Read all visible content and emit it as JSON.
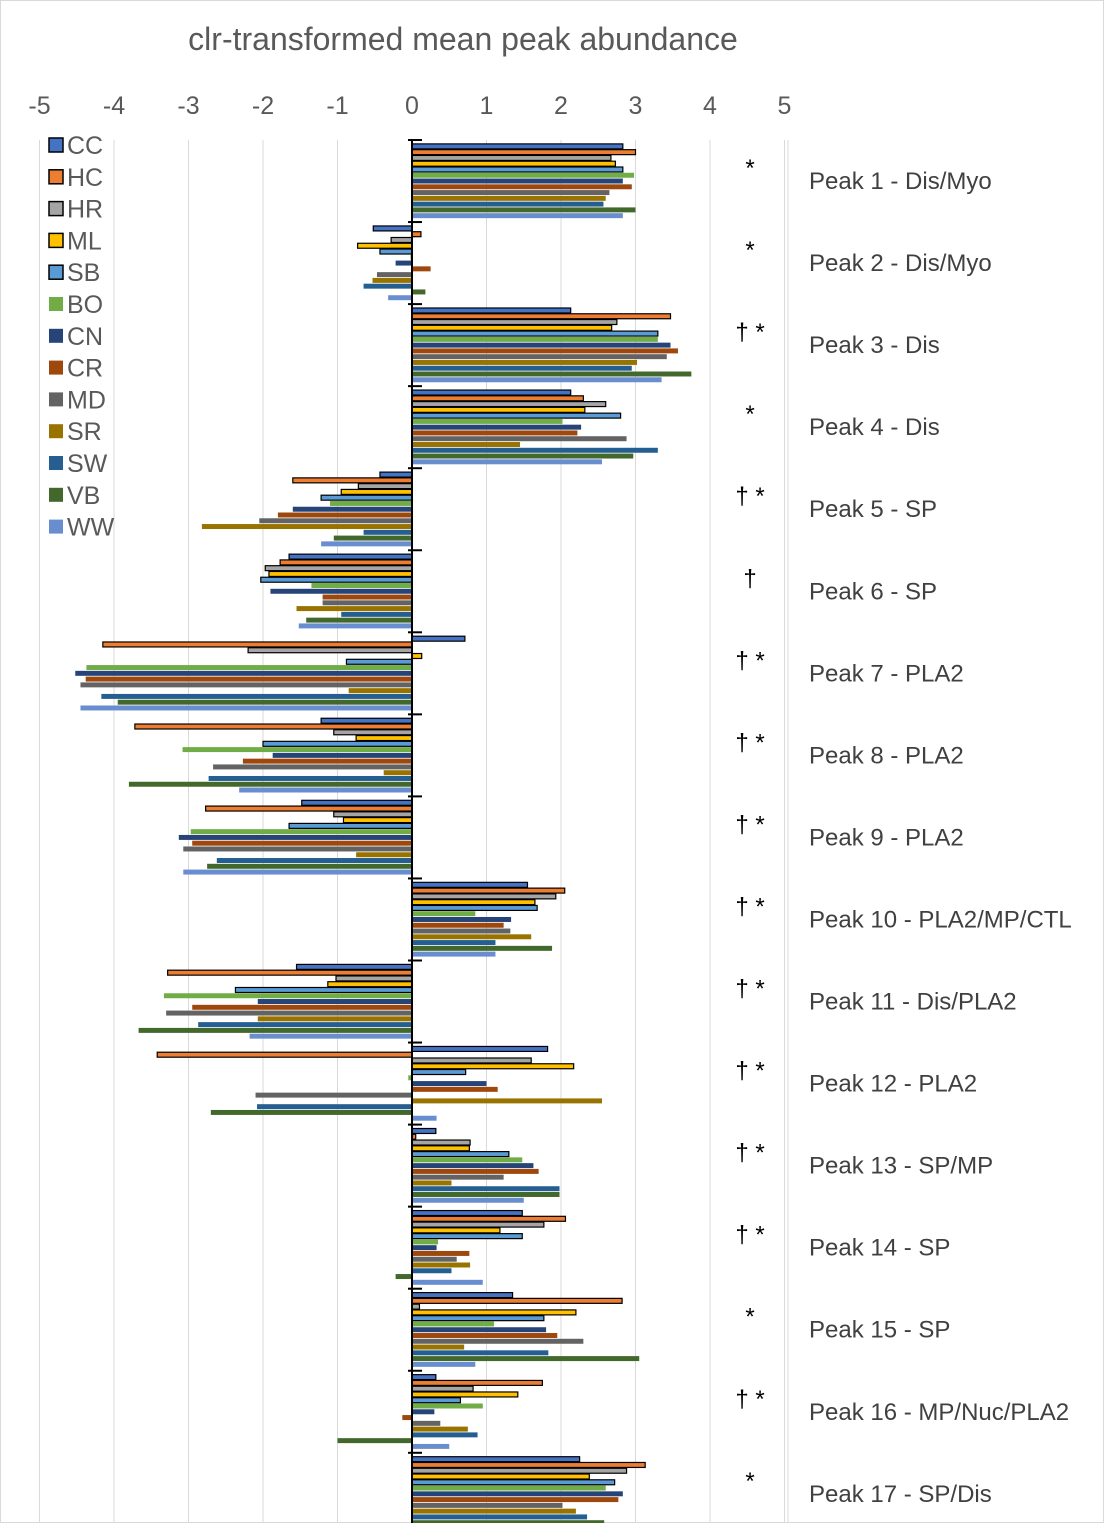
{
  "chart_data": {
    "type": "bar",
    "orientation": "horizontal",
    "title": "clr-transformed mean peak abundance",
    "xlim": [
      -5,
      5
    ],
    "x_ticks": [
      "-5",
      "-4",
      "-3",
      "-2",
      "-1",
      "0",
      "1",
      "2",
      "3",
      "4",
      "5"
    ],
    "grid": true,
    "legend_position": "top-left",
    "categories": [
      "Peak 1 - Dis/Myo",
      "Peak 2 - Dis/Myo",
      "Peak 3 - Dis",
      "Peak 4 - Dis",
      "Peak 5 - SP",
      "Peak 6 - SP",
      "Peak 7 - PLA2",
      "Peak 8 - PLA2",
      "Peak 9 - PLA2",
      "Peak 10 - PLA2/MP/CTL",
      "Peak 11 - Dis/PLA2",
      "Peak 12 - PLA2",
      "Peak 13 - SP/MP",
      "Peak 14 - SP",
      "Peak 15 - SP",
      "Peak 16 - MP/Nuc/PLA2",
      "Peak 17 - SP/Dis"
    ],
    "significance": [
      "*",
      "*",
      "† *",
      "*",
      "† *",
      "†",
      "† *",
      "† *",
      "† *",
      "† *",
      "† *",
      "† *",
      "† *",
      "† *",
      "*",
      "† *",
      "*"
    ],
    "series": [
      {
        "name": "CC",
        "color": "#4472C4",
        "outlined": true,
        "values": [
          2.83,
          -0.52,
          2.13,
          2.13,
          -0.43,
          -1.65,
          0.71,
          -1.22,
          -1.48,
          1.55,
          -1.55,
          1.82,
          0.32,
          1.48,
          1.35,
          0.32,
          2.25
        ]
      },
      {
        "name": "HC",
        "color": "#ED7D31",
        "outlined": true,
        "values": [
          3.0,
          0.12,
          3.47,
          2.3,
          -1.6,
          -1.77,
          -4.15,
          -3.72,
          -2.77,
          2.05,
          -3.28,
          -3.42,
          0.05,
          2.06,
          2.82,
          1.75,
          3.13
        ]
      },
      {
        "name": "HR",
        "color": "#A5A5A5",
        "outlined": true,
        "values": [
          2.67,
          -0.28,
          2.75,
          2.6,
          -0.72,
          -1.97,
          -2.2,
          -1.05,
          -1.05,
          1.93,
          -1.02,
          1.6,
          0.78,
          1.77,
          0.1,
          0.82,
          2.88
        ]
      },
      {
        "name": "ML",
        "color": "#FFC000",
        "outlined": true,
        "values": [
          2.73,
          -0.73,
          2.68,
          2.32,
          -0.95,
          -1.92,
          0.13,
          -0.75,
          -0.92,
          1.65,
          -1.13,
          2.17,
          0.77,
          1.18,
          2.2,
          1.42,
          2.38
        ]
      },
      {
        "name": "SB",
        "color": "#5B9BD5",
        "outlined": true,
        "values": [
          2.83,
          -0.43,
          3.3,
          2.8,
          -1.22,
          -2.03,
          -0.88,
          -2.0,
          -1.65,
          1.68,
          -2.37,
          0.72,
          1.3,
          1.48,
          1.77,
          0.65,
          2.72
        ]
      },
      {
        "name": "BO",
        "color": "#70AD47",
        "outlined": false,
        "values": [
          2.98,
          -0.02,
          3.3,
          2.02,
          -1.1,
          -1.35,
          -4.37,
          -3.08,
          -2.97,
          0.85,
          -3.33,
          -0.05,
          1.48,
          0.35,
          1.1,
          0.95,
          2.6
        ]
      },
      {
        "name": "CN",
        "color": "#264478",
        "outlined": false,
        "values": [
          2.83,
          -0.22,
          3.47,
          2.27,
          -1.6,
          -1.9,
          -4.52,
          -1.87,
          -3.13,
          1.33,
          -2.07,
          1.0,
          1.63,
          0.33,
          1.8,
          0.3,
          2.83
        ]
      },
      {
        "name": "CR",
        "color": "#9E480E",
        "outlined": false,
        "values": [
          2.95,
          0.25,
          3.57,
          2.22,
          -1.8,
          -1.2,
          -4.38,
          -2.27,
          -2.95,
          1.23,
          -2.95,
          1.15,
          1.7,
          0.77,
          1.95,
          -0.13,
          2.77
        ]
      },
      {
        "name": "MD",
        "color": "#636363",
        "outlined": false,
        "values": [
          2.65,
          -0.47,
          3.42,
          2.88,
          -2.05,
          -1.2,
          -4.45,
          -2.67,
          -3.07,
          1.32,
          -3.3,
          -2.1,
          1.23,
          0.6,
          2.3,
          0.38,
          2.02
        ]
      },
      {
        "name": "SR",
        "color": "#997300",
        "outlined": false,
        "values": [
          2.6,
          -0.53,
          3.02,
          1.45,
          -2.82,
          -1.55,
          -0.85,
          -0.38,
          -0.75,
          1.6,
          -2.07,
          2.55,
          0.53,
          0.78,
          0.7,
          0.75,
          2.2
        ]
      },
      {
        "name": "SW",
        "color": "#255E91",
        "outlined": false,
        "values": [
          2.57,
          -0.65,
          2.95,
          3.3,
          -0.65,
          -0.95,
          -4.17,
          -2.73,
          -2.62,
          1.12,
          -2.87,
          -2.08,
          1.98,
          0.53,
          1.83,
          0.88,
          2.35
        ]
      },
      {
        "name": "VB",
        "color": "#43682B",
        "outlined": false,
        "values": [
          3.0,
          0.18,
          3.75,
          2.97,
          -1.05,
          -1.42,
          -3.95,
          -3.8,
          -2.75,
          1.88,
          -3.67,
          -2.7,
          1.98,
          -0.22,
          3.05,
          -1.0,
          2.58
        ]
      },
      {
        "name": "WW",
        "color": "#698ED0",
        "outlined": false,
        "values": [
          2.83,
          -0.32,
          3.35,
          2.55,
          -1.22,
          -1.52,
          -4.45,
          -2.32,
          -3.07,
          1.12,
          -2.18,
          0.33,
          1.5,
          0.95,
          0.85,
          0.5,
          2.67
        ]
      }
    ]
  }
}
